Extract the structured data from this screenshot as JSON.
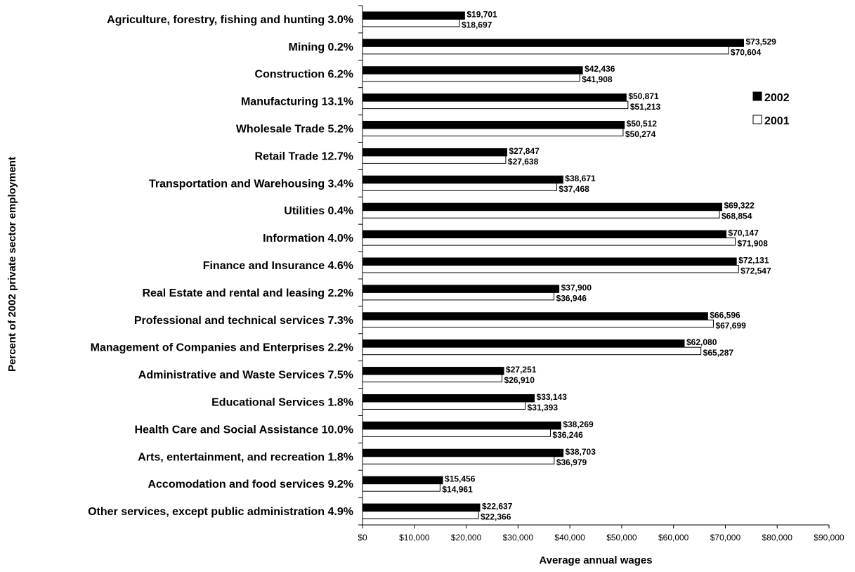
{
  "chart_data": {
    "type": "bar",
    "orientation": "horizontal",
    "title": "",
    "xlabel": "Average annual wages",
    "ylabel": "Percent of 2002 private sector employment",
    "xlim": [
      0,
      90000
    ],
    "x_ticks": [
      0,
      10000,
      20000,
      30000,
      40000,
      50000,
      60000,
      70000,
      80000,
      90000
    ],
    "x_tick_labels": [
      "$0",
      "$10,000",
      "$20,000",
      "$30,000",
      "$40,000",
      "$50,000",
      "$60,000",
      "$70,000",
      "$80,000",
      "$90,000"
    ],
    "grid": false,
    "legend_position": "right",
    "categories": [
      "Agriculture, forestry, fishing and hunting 3.0%",
      "Mining 0.2%",
      "Construction 6.2%",
      "Manufacturing 13.1%",
      "Wholesale Trade 5.2%",
      "Retail Trade 12.7%",
      "Transportation and Warehousing 3.4%",
      "Utilities 0.4%",
      "Information 4.0%",
      "Finance and Insurance 4.6%",
      "Real Estate and rental and leasing 2.2%",
      "Professional and technical services 7.3%",
      "Management of Companies and Enterprises 2.2%",
      "Administrative and Waste Services 7.5%",
      "Educational Services 1.8%",
      "Health Care and Social Assistance 10.0%",
      "Arts, entertainment, and recreation 1.8%",
      "Accomodation and food services 9.2%",
      "Other services, except public administration 4.9%"
    ],
    "series": [
      {
        "name": "2002",
        "color": "#000000",
        "values": [
          19701,
          73529,
          42436,
          50871,
          50512,
          27847,
          38671,
          69322,
          70147,
          72131,
          37900,
          66596,
          62080,
          27251,
          33143,
          38269,
          38703,
          15456,
          22637
        ],
        "labels": [
          "$19,701",
          "$73,529",
          "$42,436",
          "$50,871",
          "$50,512",
          "$27,847",
          "$38,671",
          "$69,322",
          "$70,147",
          "$72,131",
          "$37,900",
          "$66,596",
          "$62,080",
          "$27,251",
          "$33,143",
          "$38,269",
          "$38,703",
          "$15,456",
          "$22,637"
        ]
      },
      {
        "name": "2001",
        "color": "#ffffff",
        "values": [
          18697,
          70604,
          41908,
          51213,
          50274,
          27638,
          37468,
          68854,
          71908,
          72547,
          36946,
          67699,
          65287,
          26910,
          31393,
          36246,
          36979,
          14961,
          22366
        ],
        "labels": [
          "$18,697",
          "$70,604",
          "$41,908",
          "$51,213",
          "$50,274",
          "$27,638",
          "$37,468",
          "$68,854",
          "$71,908",
          "$72,547",
          "$36,946",
          "$67,699",
          "$65,287",
          "$26,910",
          "$31,393",
          "$36,246",
          "$36,979",
          "$14,961",
          "$22,366"
        ]
      }
    ]
  }
}
